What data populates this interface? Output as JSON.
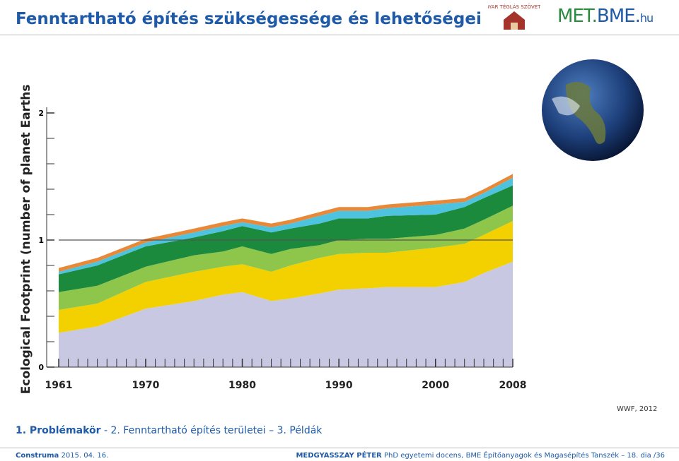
{
  "header": {
    "title": "Fenntartható építés szükségessége és lehetőségei",
    "logo_left": "MAGYAR TÉGLÁS SZÖVETSÉG",
    "logo_right": {
      "a": "MET.",
      "b": "BME.",
      "c": "hu"
    }
  },
  "chart_data": {
    "type": "stacked-area",
    "y_label": "Ecological Footprint (number of planet Earths)",
    "source": "WWF, 2012",
    "x": [
      1961,
      1965,
      1970,
      1975,
      1978,
      1980,
      1983,
      1985,
      1988,
      1990,
      1993,
      1995,
      2000,
      2003,
      2005,
      2008
    ],
    "xlim": [
      1961,
      2008
    ],
    "xticks": [
      1961,
      1970,
      1980,
      1990,
      2000,
      2008
    ],
    "xminor_step": 1,
    "ylim": [
      0,
      2
    ],
    "yticks": [
      0,
      1,
      2
    ],
    "yminor_step": 0.2,
    "reference_line": 1,
    "series": [
      {
        "color": "#c9c8e3",
        "values": [
          0.27,
          0.32,
          0.46,
          0.52,
          0.57,
          0.59,
          0.52,
          0.54,
          0.58,
          0.61,
          0.62,
          0.63,
          0.63,
          0.67,
          0.74,
          0.83
        ]
      },
      {
        "color": "#f3d100",
        "values": [
          0.18,
          0.18,
          0.21,
          0.23,
          0.22,
          0.22,
          0.23,
          0.26,
          0.28,
          0.28,
          0.28,
          0.27,
          0.31,
          0.3,
          0.3,
          0.32
        ]
      },
      {
        "color": "#8dc64b",
        "values": [
          0.14,
          0.14,
          0.12,
          0.13,
          0.12,
          0.14,
          0.14,
          0.13,
          0.1,
          0.11,
          0.11,
          0.11,
          0.1,
          0.12,
          0.12,
          0.12
        ]
      },
      {
        "color": "#1b8a3d",
        "values": [
          0.14,
          0.16,
          0.16,
          0.14,
          0.16,
          0.16,
          0.17,
          0.16,
          0.17,
          0.17,
          0.16,
          0.18,
          0.16,
          0.17,
          0.17,
          0.16
        ]
      },
      {
        "color": "#4ec3df",
        "values": [
          0.02,
          0.03,
          0.03,
          0.04,
          0.04,
          0.03,
          0.04,
          0.04,
          0.06,
          0.06,
          0.06,
          0.06,
          0.08,
          0.04,
          0.04,
          0.06
        ]
      },
      {
        "color": "#e8893a",
        "values": [
          0.03,
          0.03,
          0.03,
          0.03,
          0.03,
          0.03,
          0.03,
          0.03,
          0.03,
          0.03,
          0.03,
          0.03,
          0.03,
          0.03,
          0.03,
          0.03
        ]
      }
    ]
  },
  "breadcrumb": {
    "bold": "1. Problémakör",
    "rest": " - 2. Fenntartható építés területei – 3. Példák"
  },
  "footer": {
    "event": "Construma",
    "date": "2015. 04. 16.",
    "author": "MEDGYASSZAY PÉTER",
    "info": "PhD egyetemi docens, BME Építőanyagok és Magasépítés Tanszék – 18. dia /36"
  }
}
